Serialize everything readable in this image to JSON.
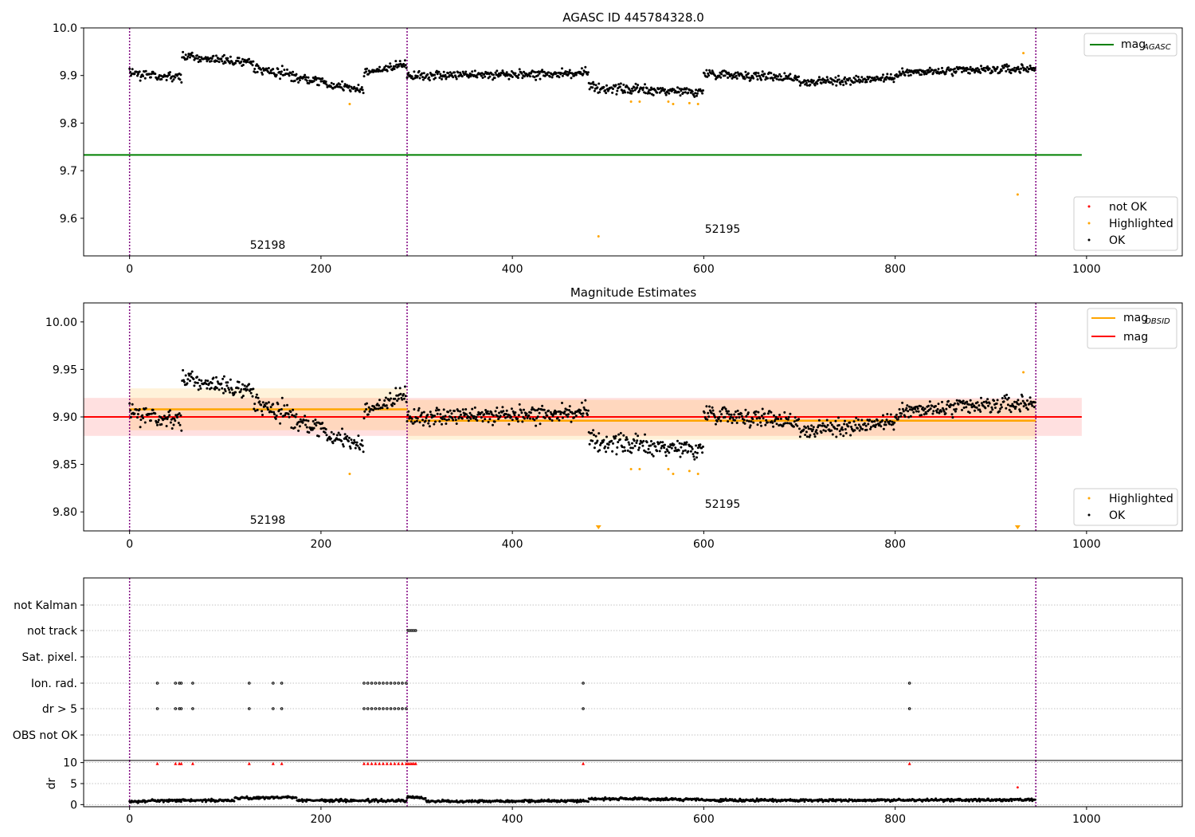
{
  "chart_data": [
    {
      "type": "scatter",
      "title": "AGASC ID 445784328.0",
      "xlim": [
        -48,
        1100
      ],
      "ylim": [
        9.521,
        10.0
      ],
      "xticks": [
        0,
        200,
        400,
        600,
        800,
        1000
      ],
      "yticks": [
        9.6,
        9.7,
        9.8,
        9.9,
        10.0
      ],
      "ytick_labels": [
        "9.6",
        "9.7",
        "9.8",
        "9.9",
        "10.0"
      ],
      "vlines": [
        0,
        290,
        947
      ],
      "obsid_labels": [
        {
          "text": "52198",
          "x": 143,
          "y": 9.54
        },
        {
          "text": "52195",
          "x": 619,
          "y": 9.57
        }
      ],
      "hlines": [
        {
          "name": "mag_AGASC",
          "y": 9.733,
          "x": [
            -48,
            995
          ],
          "color": "#008000"
        }
      ],
      "legend_lines": [
        {
          "label": "mag",
          "sub": "AGASC",
          "color": "#008000"
        }
      ],
      "legend_points": [
        {
          "label": "not OK",
          "color": "#ff0000"
        },
        {
          "label": "Highlighted",
          "color": "#ffa500"
        },
        {
          "label": "OK",
          "color": "#000000"
        }
      ],
      "highlighted": [
        [
          230,
          9.84
        ],
        [
          490,
          9.562
        ],
        [
          524,
          9.845
        ],
        [
          533,
          9.845
        ],
        [
          563,
          9.845
        ],
        [
          568,
          9.84
        ],
        [
          585,
          9.842
        ],
        [
          594,
          9.84
        ],
        [
          928,
          9.65
        ],
        [
          934,
          9.947
        ]
      ],
      "ok_segments": [
        {
          "x": [
            0,
            55
          ],
          "y": [
            9.905,
            9.895
          ],
          "noise": 0.014
        },
        {
          "x": [
            55,
            130
          ],
          "y": [
            9.94,
            9.925
          ],
          "noise": 0.012
        },
        {
          "x": [
            130,
            175
          ],
          "y": [
            9.915,
            9.9
          ],
          "noise": 0.016
        },
        {
          "x": [
            175,
            245
          ],
          "y": [
            9.895,
            9.87
          ],
          "noise": 0.012
        },
        {
          "x": [
            245,
            290
          ],
          "y": [
            9.905,
            9.925
          ],
          "noise": 0.012
        },
        {
          "x": [
            290,
            480
          ],
          "y": [
            9.9,
            9.905
          ],
          "noise": 0.013
        },
        {
          "x": [
            480,
            600
          ],
          "y": [
            9.875,
            9.865
          ],
          "noise": 0.013
        },
        {
          "x": [
            600,
            700
          ],
          "y": [
            9.905,
            9.895
          ],
          "noise": 0.013
        },
        {
          "x": [
            700,
            800
          ],
          "y": [
            9.885,
            9.895
          ],
          "noise": 0.012
        },
        {
          "x": [
            800,
            947
          ],
          "y": [
            9.905,
            9.915
          ],
          "noise": 0.013
        }
      ]
    },
    {
      "type": "scatter",
      "title": "Magnitude Estimates",
      "xlim": [
        -48,
        1100
      ],
      "ylim": [
        9.78,
        10.02
      ],
      "xticks": [
        0,
        200,
        400,
        600,
        800,
        1000
      ],
      "yticks": [
        9.8,
        9.85,
        9.9,
        9.95,
        10.0
      ],
      "ytick_labels": [
        "9.80",
        "9.85",
        "9.90",
        "9.95",
        "10.00"
      ],
      "vlines": [
        0,
        290,
        947
      ],
      "obsid_labels": [
        {
          "text": "52198",
          "x": 143,
          "y": 9.788
        },
        {
          "text": "52195",
          "x": 619,
          "y": 9.808
        }
      ],
      "mag": {
        "value": 9.9,
        "band": [
          9.88,
          9.92
        ],
        "x": [
          -48,
          995
        ],
        "color": "#ff0000"
      },
      "mag_obsid": [
        {
          "x": [
            0,
            290
          ],
          "value": 9.908,
          "band": [
            9.886,
            9.93
          ]
        },
        {
          "x": [
            290,
            947
          ],
          "value": 9.896,
          "band": [
            9.876,
            9.918
          ]
        }
      ],
      "legend_lines": [
        {
          "label": "mag",
          "sub": "OBSID",
          "color": "#ffa500"
        },
        {
          "label": "mag",
          "sub": "",
          "color": "#ff0000"
        }
      ],
      "legend_points": [
        {
          "label": "Highlighted",
          "color": "#ffa500"
        },
        {
          "label": "OK",
          "color": "#000000"
        }
      ],
      "highlighted": [
        [
          230,
          9.84
        ],
        [
          524,
          9.845
        ],
        [
          533,
          9.845
        ],
        [
          563,
          9.845
        ],
        [
          568,
          9.84
        ],
        [
          585,
          9.843
        ],
        [
          594,
          9.84
        ],
        [
          934,
          9.947
        ]
      ],
      "offscale_markers": [
        490,
        928
      ],
      "ok_segments": [
        {
          "x": [
            0,
            55
          ],
          "y": [
            9.905,
            9.895
          ],
          "noise": 0.014
        },
        {
          "x": [
            55,
            130
          ],
          "y": [
            9.94,
            9.925
          ],
          "noise": 0.012
        },
        {
          "x": [
            130,
            175
          ],
          "y": [
            9.915,
            9.9
          ],
          "noise": 0.016
        },
        {
          "x": [
            175,
            245
          ],
          "y": [
            9.895,
            9.87
          ],
          "noise": 0.012
        },
        {
          "x": [
            245,
            290
          ],
          "y": [
            9.905,
            9.925
          ],
          "noise": 0.012
        },
        {
          "x": [
            290,
            480
          ],
          "y": [
            9.9,
            9.905
          ],
          "noise": 0.013
        },
        {
          "x": [
            480,
            600
          ],
          "y": [
            9.875,
            9.865
          ],
          "noise": 0.013
        },
        {
          "x": [
            600,
            700
          ],
          "y": [
            9.905,
            9.895
          ],
          "noise": 0.013
        },
        {
          "x": [
            700,
            800
          ],
          "y": [
            9.885,
            9.895
          ],
          "noise": 0.012
        },
        {
          "x": [
            800,
            947
          ],
          "y": [
            9.905,
            9.915
          ],
          "noise": 0.013
        }
      ]
    },
    {
      "type": "scatter",
      "xlim": [
        -48,
        1100
      ],
      "categories": [
        "not Kalman",
        "not track",
        "Sat. pixel.",
        "Ion. rad.",
        "dr > 5",
        "OBS not OK"
      ],
      "vlines": [
        0,
        290,
        947
      ],
      "flags": {
        "not track": [
          291,
          293,
          295,
          297,
          299
        ],
        "Ion. rad.": [
          29,
          48,
          52,
          54,
          66,
          125,
          150,
          159,
          245,
          249,
          253,
          257,
          261,
          265,
          269,
          273,
          277,
          281,
          285,
          289,
          474,
          815
        ],
        "dr > 5": [
          29,
          48,
          52,
          54,
          66,
          125,
          150,
          159,
          245,
          249,
          253,
          257,
          261,
          265,
          269,
          273,
          277,
          281,
          285,
          289,
          474,
          815
        ]
      }
    },
    {
      "type": "scatter",
      "ylabel": "dr",
      "xlim": [
        -48,
        1100
      ],
      "ylim": [
        -0.5,
        10.5
      ],
      "xticks": [
        0,
        200,
        400,
        600,
        800,
        1000
      ],
      "yticks": [
        0,
        5,
        10
      ],
      "vlines": [
        0,
        290,
        947
      ],
      "capped_x": [
        29,
        48,
        52,
        54,
        66,
        125,
        150,
        159,
        245,
        249,
        253,
        257,
        261,
        265,
        269,
        273,
        277,
        281,
        285,
        289,
        291,
        293,
        295,
        297,
        299,
        474,
        815
      ],
      "notok_points": [
        [
          928,
          4.1
        ]
      ],
      "dr_segments": [
        {
          "x": [
            0,
            20
          ],
          "y": [
            0.6,
            0.8
          ]
        },
        {
          "x": [
            20,
            110
          ],
          "y": [
            1.0,
            1.0
          ]
        },
        {
          "x": [
            110,
            175
          ],
          "y": [
            1.5,
            1.8
          ]
        },
        {
          "x": [
            175,
            290
          ],
          "y": [
            1.0,
            0.9
          ]
        },
        {
          "x": [
            290,
            310
          ],
          "y": [
            1.8,
            1.5
          ]
        },
        {
          "x": [
            310,
            480
          ],
          "y": [
            0.8,
            0.9
          ]
        },
        {
          "x": [
            480,
            600
          ],
          "y": [
            1.4,
            1.2
          ]
        },
        {
          "x": [
            600,
            947
          ],
          "y": [
            1.0,
            1.1
          ]
        }
      ]
    }
  ]
}
